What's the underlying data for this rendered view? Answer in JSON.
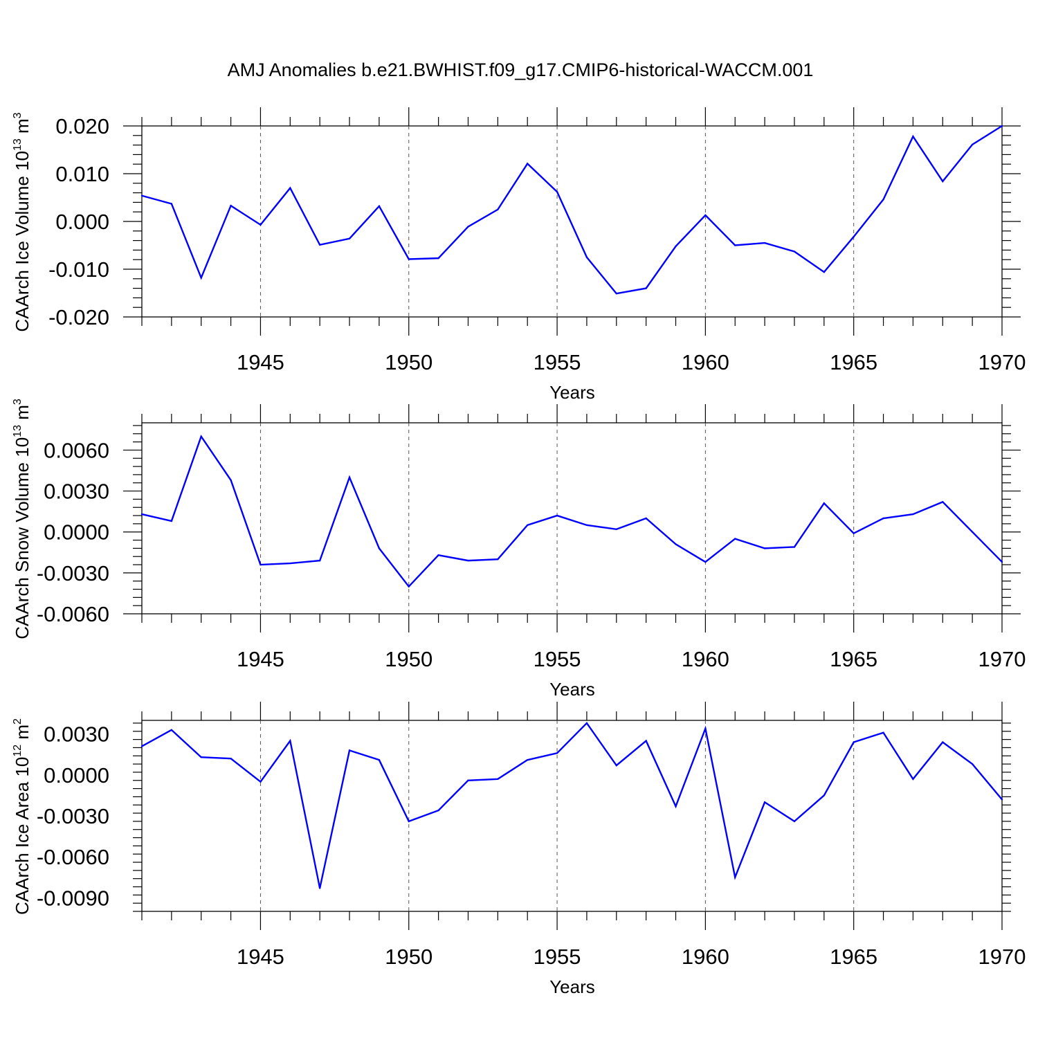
{
  "title": "AMJ Anomalies b.e21.BWHIST.f09_g17.CMIP6-historical-WACCM.001",
  "colors": {
    "series": "#0000ff",
    "axis": "#000000",
    "grid": "#555555"
  },
  "chart_data": [
    {
      "type": "line",
      "ylabel": "CAArch Ice Volume 10",
      "ylabel_exp": "13",
      "ylabel_unit": " m",
      "ylabel_unit_exp": "3",
      "xlabel": "Years",
      "xlim": [
        1941,
        1970
      ],
      "ylim": [
        -0.02,
        0.02
      ],
      "yticks": [
        -0.02,
        -0.01,
        0.0,
        0.01,
        0.02
      ],
      "ytick_labels": [
        "-0.020",
        "-0.010",
        "0.000",
        "0.010",
        "0.020"
      ],
      "xticks": [
        1945,
        1950,
        1955,
        1960,
        1965,
        1970
      ],
      "xtick_labels": [
        "1945",
        "1950",
        "1955",
        "1960",
        "1965",
        "1970"
      ],
      "grid": "vertical dashed at major x ticks",
      "x": [
        1941,
        1942,
        1943,
        1944,
        1945,
        1946,
        1947,
        1948,
        1949,
        1950,
        1951,
        1952,
        1953,
        1954,
        1955,
        1956,
        1957,
        1958,
        1959,
        1960,
        1961,
        1962,
        1963,
        1964,
        1965,
        1966,
        1967,
        1968,
        1969,
        1970
      ],
      "series": [
        {
          "values": [
            0.0054,
            0.0037,
            -0.0118,
            0.0033,
            -0.0007,
            0.007,
            -0.0049,
            -0.0036,
            0.0032,
            -0.0079,
            -0.0077,
            -0.0011,
            0.0025,
            0.0121,
            0.0062,
            -0.0075,
            -0.0151,
            -0.014,
            -0.0052,
            0.0013,
            -0.005,
            -0.0045,
            -0.0063,
            -0.0106,
            -0.0032,
            0.0046,
            0.0178,
            0.0084,
            0.0161,
            0.02
          ]
        }
      ]
    },
    {
      "type": "line",
      "ylabel": "CAArch Snow Volume 10",
      "ylabel_exp": "13",
      "ylabel_unit": " m",
      "ylabel_unit_exp": "3",
      "xlabel": "Years",
      "xlim": [
        1941,
        1970
      ],
      "ylim": [
        -0.006,
        0.008
      ],
      "yticks": [
        -0.006,
        -0.003,
        0.0,
        0.003,
        0.006
      ],
      "ytick_labels": [
        "-0.0060",
        "-0.0030",
        "0.0000",
        "0.0030",
        "0.0060"
      ],
      "xticks": [
        1945,
        1950,
        1955,
        1960,
        1965,
        1970
      ],
      "xtick_labels": [
        "1945",
        "1950",
        "1955",
        "1960",
        "1965",
        "1970"
      ],
      "grid": "vertical dashed at major x ticks",
      "x": [
        1941,
        1942,
        1943,
        1944,
        1945,
        1946,
        1947,
        1948,
        1949,
        1950,
        1951,
        1952,
        1953,
        1954,
        1955,
        1956,
        1957,
        1958,
        1959,
        1960,
        1961,
        1962,
        1963,
        1964,
        1965,
        1966,
        1967,
        1968,
        1969,
        1970
      ],
      "series": [
        {
          "values": [
            0.0013,
            0.0008,
            0.007,
            0.0038,
            -0.0024,
            -0.0023,
            -0.0021,
            0.004,
            -0.0012,
            -0.004,
            -0.0017,
            -0.0021,
            -0.002,
            0.0005,
            0.0012,
            0.0005,
            0.0002,
            0.001,
            -0.0009,
            -0.0022,
            -0.0005,
            -0.0012,
            -0.0011,
            0.0021,
            -0.0001,
            0.001,
            0.0013,
            0.0022,
            0.0,
            -0.0022
          ]
        }
      ]
    },
    {
      "type": "line",
      "ylabel": "CAArch Ice Area 10",
      "ylabel_exp": "12",
      "ylabel_unit": " m",
      "ylabel_unit_exp": "2",
      "xlabel": "Years",
      "xlim": [
        1941,
        1970
      ],
      "ylim": [
        -0.01,
        0.004
      ],
      "yticks": [
        -0.009,
        -0.006,
        -0.003,
        0.0,
        0.003
      ],
      "ytick_labels": [
        "-0.0090",
        "-0.0060",
        "-0.0030",
        "0.0000",
        "0.0030"
      ],
      "xticks": [
        1945,
        1950,
        1955,
        1960,
        1965,
        1970
      ],
      "xtick_labels": [
        "1945",
        "1950",
        "1955",
        "1960",
        "1965",
        "1970"
      ],
      "grid": "vertical dashed at major x ticks",
      "x": [
        1941,
        1942,
        1943,
        1944,
        1945,
        1946,
        1947,
        1948,
        1949,
        1950,
        1951,
        1952,
        1953,
        1954,
        1955,
        1956,
        1957,
        1958,
        1959,
        1960,
        1961,
        1962,
        1963,
        1964,
        1965,
        1966,
        1967,
        1968,
        1969,
        1970
      ],
      "series": [
        {
          "values": [
            0.0021,
            0.0033,
            0.0013,
            0.0012,
            -0.0005,
            0.0025,
            -0.0083,
            0.0018,
            0.0011,
            -0.0034,
            -0.0026,
            -0.0004,
            -0.0003,
            0.0011,
            0.0016,
            0.0038,
            0.0007,
            0.0025,
            -0.0023,
            0.0034,
            -0.0075,
            -0.002,
            -0.0034,
            -0.0015,
            0.0024,
            0.0031,
            -0.0003,
            0.0024,
            0.0008,
            -0.0018
          ]
        }
      ]
    }
  ]
}
